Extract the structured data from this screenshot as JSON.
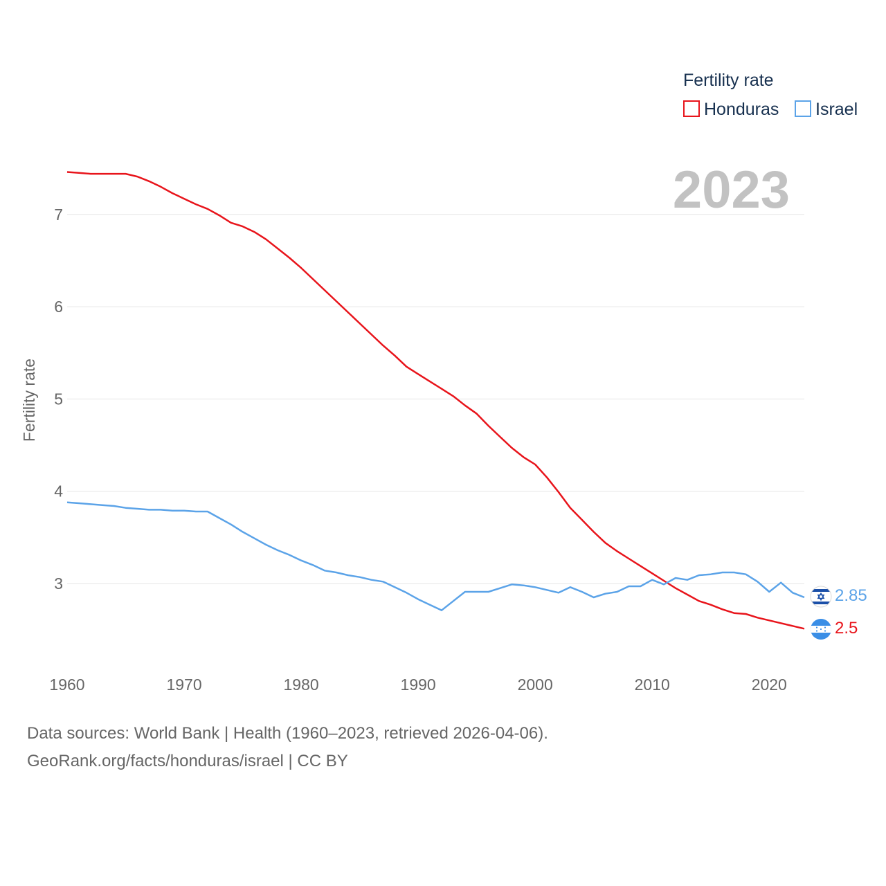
{
  "chart_data": {
    "type": "line",
    "title": "Fertility rate",
    "year_label": "2023",
    "ylabel": "Fertility rate",
    "xlabel": "",
    "xlim": [
      1960,
      2023
    ],
    "ylim": [
      2.0,
      7.8
    ],
    "x_ticks": [
      1960,
      1970,
      1980,
      1990,
      2000,
      2010,
      2020
    ],
    "y_ticks": [
      3,
      4,
      5,
      6,
      7
    ],
    "grid": true,
    "legend_position": "top-right",
    "legend": {
      "title": "Fertility rate",
      "entries": [
        "Honduras",
        "Israel"
      ]
    },
    "x": [
      1960,
      1961,
      1962,
      1963,
      1964,
      1965,
      1966,
      1967,
      1968,
      1969,
      1970,
      1971,
      1972,
      1973,
      1974,
      1975,
      1976,
      1977,
      1978,
      1979,
      1980,
      1981,
      1982,
      1983,
      1984,
      1985,
      1986,
      1987,
      1988,
      1989,
      1990,
      1991,
      1992,
      1993,
      1994,
      1995,
      1996,
      1997,
      1998,
      1999,
      2000,
      2001,
      2002,
      2003,
      2004,
      2005,
      2006,
      2007,
      2008,
      2009,
      2010,
      2011,
      2012,
      2013,
      2014,
      2015,
      2016,
      2017,
      2018,
      2019,
      2020,
      2021,
      2022,
      2023
    ],
    "series": [
      {
        "name": "Honduras",
        "color": "#e8141b",
        "end_label": "2.5",
        "values": [
          7.46,
          7.45,
          7.44,
          7.44,
          7.44,
          7.44,
          7.41,
          7.36,
          7.3,
          7.23,
          7.17,
          7.11,
          7.06,
          6.99,
          6.91,
          6.87,
          6.81,
          6.73,
          6.63,
          6.53,
          6.42,
          6.3,
          6.18,
          6.06,
          5.94,
          5.82,
          5.7,
          5.58,
          5.47,
          5.35,
          5.27,
          5.19,
          5.11,
          5.03,
          4.93,
          4.84,
          4.71,
          4.59,
          4.47,
          4.37,
          4.29,
          4.15,
          3.99,
          3.82,
          3.69,
          3.56,
          3.44,
          3.35,
          3.27,
          3.19,
          3.11,
          3.03,
          2.95,
          2.88,
          2.81,
          2.77,
          2.72,
          2.68,
          2.67,
          2.63,
          2.6,
          2.57,
          2.54,
          2.51
        ]
      },
      {
        "name": "Israel",
        "color": "#5ba3e8",
        "end_label": "2.85",
        "values": [
          3.88,
          3.87,
          3.86,
          3.85,
          3.84,
          3.82,
          3.81,
          3.8,
          3.8,
          3.79,
          3.79,
          3.78,
          3.78,
          3.71,
          3.64,
          3.56,
          3.49,
          3.42,
          3.36,
          3.31,
          3.25,
          3.2,
          3.14,
          3.12,
          3.09,
          3.07,
          3.04,
          3.02,
          2.96,
          2.9,
          2.83,
          2.77,
          2.71,
          2.81,
          2.91,
          2.91,
          2.91,
          2.95,
          2.99,
          2.98,
          2.96,
          2.93,
          2.9,
          2.96,
          2.91,
          2.85,
          2.89,
          2.91,
          2.97,
          2.97,
          3.04,
          2.99,
          3.06,
          3.04,
          3.09,
          3.1,
          3.12,
          3.12,
          3.1,
          3.02,
          2.91,
          3.01,
          2.9,
          2.85
        ]
      }
    ]
  },
  "source": {
    "line1": "Data sources: World Bank | Health (1960–2023, retrieved 2026-04-06).",
    "line2": "GeoRank.org/facts/honduras/israel | CC BY"
  }
}
